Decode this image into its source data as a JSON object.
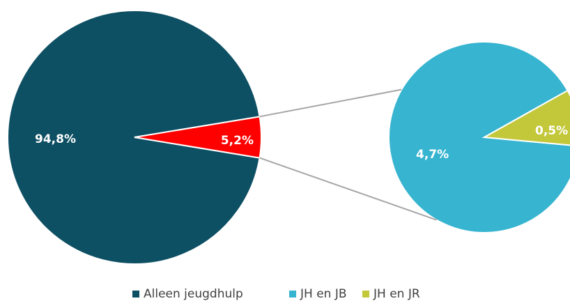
{
  "chart_data": {
    "type": "pie-of-pie",
    "primary": {
      "values": [
        94.8,
        5.2
      ],
      "value_labels": [
        "94,8%",
        "5,2%"
      ],
      "colors": [
        "#0d4f63",
        "#ff0000"
      ]
    },
    "secondary": {
      "values": [
        4.7,
        0.5
      ],
      "value_labels": [
        "4,7%",
        "0,5%"
      ],
      "colors": [
        "#36b4d0",
        "#c3c83b"
      ]
    },
    "legend": [
      "Alleen jeugdhulp",
      "JH en JB",
      "JH en JR"
    ]
  }
}
